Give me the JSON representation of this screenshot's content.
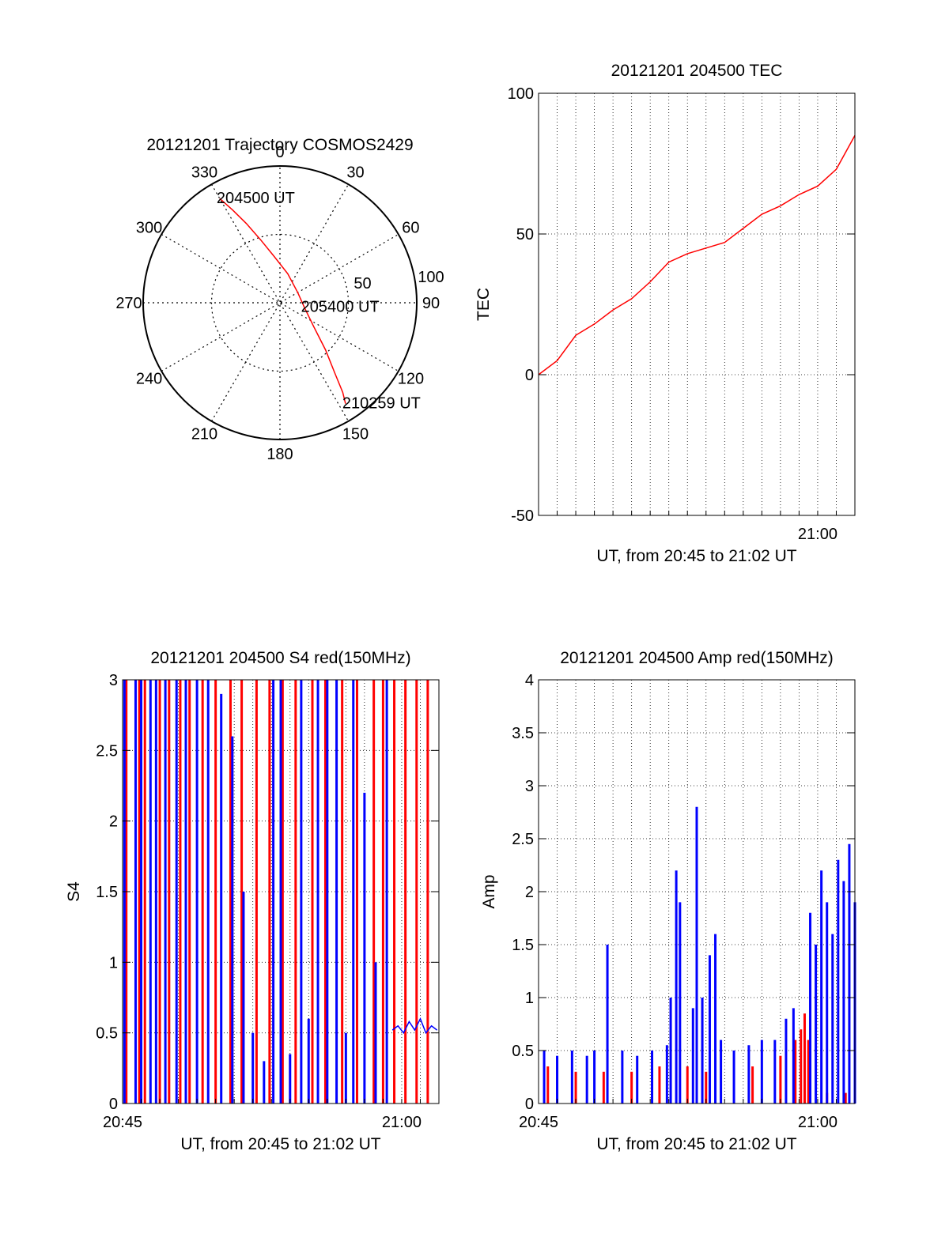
{
  "chart_data": [
    {
      "type": "polar",
      "title": "20121201 Trajectory COSMOS2429",
      "azimuth_labels": [
        "0",
        "30",
        "60",
        "90",
        "120",
        "150",
        "180",
        "210",
        "240",
        "270",
        "300",
        "330"
      ],
      "radial_labels": [
        "50",
        "100"
      ],
      "series": [
        {
          "color": "#ff0000",
          "points": [
            {
              "az": 330,
              "r": 88
            },
            {
              "az": 333,
              "r": 76
            },
            {
              "az": 337,
              "r": 63
            },
            {
              "az": 343,
              "r": 48
            },
            {
              "az": 353,
              "r": 34
            },
            {
              "az": 15,
              "r": 22
            },
            {
              "az": 60,
              "r": 15
            },
            {
              "az": 100,
              "r": 18
            },
            {
              "az": 125,
              "r": 30
            },
            {
              "az": 136,
              "r": 48
            },
            {
              "az": 142,
              "r": 65
            },
            {
              "az": 145,
              "r": 80
            },
            {
              "az": 147,
              "r": 88
            }
          ]
        }
      ],
      "annotations": [
        {
          "text": "204500 UT",
          "az": 330,
          "r": 88
        },
        {
          "text": "205400 UT",
          "az": 100,
          "r": 18
        },
        {
          "text": "210259 UT",
          "az": 147,
          "r": 88
        }
      ]
    },
    {
      "type": "line",
      "title": "20121201 204500 TEC",
      "xlabel": "UT, from 20:45 to 21:02 UT",
      "ylabel": "TEC",
      "xlim": [
        0,
        17
      ],
      "ylim": [
        -50,
        100
      ],
      "yticks": [
        "100",
        "50",
        "0",
        "-50"
      ],
      "xticks": [
        {
          "at": 15,
          "label": "21:00"
        }
      ],
      "grid": true,
      "series": [
        {
          "color": "#ff0000",
          "x": [
            0,
            1,
            2,
            3,
            4,
            5,
            6,
            7,
            8,
            9,
            10,
            11,
            12,
            13,
            14,
            15,
            16,
            17
          ],
          "y": [
            0,
            5,
            14,
            18,
            23,
            27,
            33,
            40,
            43,
            45,
            47,
            52,
            57,
            60,
            64,
            67,
            73,
            85
          ]
        }
      ]
    },
    {
      "type": "line",
      "title": "20121201 204500 S4 red(150MHz)",
      "xlabel": "UT, from 20:45 to 21:02 UT",
      "ylabel": "S4",
      "xlim": [
        0,
        17
      ],
      "ylim": [
        0,
        3
      ],
      "yticks": [
        "3",
        "2.5",
        "2",
        "1.5",
        "1",
        "0.5",
        "0"
      ],
      "xticks": [
        {
          "at": 0,
          "label": "20:45"
        },
        {
          "at": 15,
          "label": "21:00"
        }
      ],
      "grid": true,
      "series": [
        {
          "color": "#ff0000",
          "style": "spikes",
          "x": [
            0.2,
            0.9,
            1.2,
            2.0,
            2.5,
            3.1,
            3.6,
            4.3,
            5.0,
            5.8,
            6.4,
            7.2,
            7.9,
            8.6,
            9.3,
            10.2,
            10.9,
            11.8,
            12.6,
            13.5,
            14.0,
            14.6,
            15.2,
            15.8,
            16.4
          ],
          "y": [
            3,
            3,
            3,
            3,
            3,
            3,
            3,
            3,
            3,
            3,
            3,
            3,
            3,
            3,
            3,
            3,
            3,
            3,
            3,
            3,
            3,
            3,
            3,
            3,
            3
          ]
        },
        {
          "color": "#0000ff",
          "style": "spikes",
          "x": [
            0.1,
            0.7,
            1.0,
            1.5,
            1.8,
            2.3,
            2.9,
            3.4,
            4.0,
            4.6,
            5.3,
            5.9,
            6.5,
            7.0,
            7.6,
            8.1,
            8.5,
            9.0,
            9.6,
            10.0,
            10.5,
            11.0,
            11.5,
            12.0,
            12.4,
            13.0,
            13.6,
            14.2
          ],
          "y": [
            3,
            3,
            3,
            3,
            3,
            3,
            3,
            3,
            3,
            3,
            2.9,
            2.6,
            1.5,
            0.5,
            0.3,
            3,
            3,
            0.35,
            3,
            0.6,
            3,
            3,
            3,
            0.5,
            3,
            2.2,
            1.0,
            3
          ]
        },
        {
          "color": "#0000ff",
          "style": "line",
          "x": [
            14.5,
            14.8,
            15.1,
            15.4,
            15.7,
            16.0,
            16.3,
            16.6,
            16.9
          ],
          "y": [
            0.52,
            0.55,
            0.5,
            0.58,
            0.52,
            0.6,
            0.5,
            0.55,
            0.52
          ]
        }
      ]
    },
    {
      "type": "line",
      "title": "20121201 204500 Amp red(150MHz)",
      "xlabel": "UT, from 20:45 to 21:02 UT",
      "ylabel": "Amp",
      "xlim": [
        0,
        17
      ],
      "ylim": [
        0,
        4
      ],
      "yticks": [
        "4",
        "3.5",
        "3",
        "2.5",
        "2",
        "1.5",
        "1",
        "0.5",
        "0"
      ],
      "xticks": [
        {
          "at": 0,
          "label": "20:45"
        },
        {
          "at": 15,
          "label": "21:00"
        }
      ],
      "grid": true,
      "series": [
        {
          "color": "#ff0000",
          "style": "spikes",
          "x": [
            0.5,
            2.0,
            3.5,
            5.0,
            6.5,
            8.0,
            9.0,
            11.5,
            13.0,
            13.8,
            14.1,
            14.3,
            14.5,
            15.5,
            16.5
          ],
          "y": [
            0.35,
            0.3,
            0.3,
            0.3,
            0.35,
            0.35,
            0.3,
            0.35,
            0.45,
            0.6,
            0.7,
            0.85,
            0.6,
            0.1,
            0.1
          ]
        },
        {
          "color": "#0000ff",
          "style": "spikes",
          "x": [
            0.3,
            1.0,
            1.8,
            2.6,
            3.0,
            3.7,
            4.5,
            5.3,
            6.1,
            6.9,
            7.1,
            7.4,
            7.6,
            8.3,
            8.5,
            8.8,
            9.2,
            9.5,
            9.8,
            10.5,
            11.3,
            12.0,
            12.7,
            13.3,
            13.7,
            14.6,
            14.9,
            15.2,
            15.5,
            15.8,
            16.1,
            16.4,
            16.7,
            17.0
          ],
          "y": [
            0.5,
            0.45,
            0.5,
            0.45,
            0.5,
            1.5,
            0.5,
            0.45,
            0.5,
            0.55,
            1.0,
            2.2,
            1.9,
            0.9,
            2.8,
            1.0,
            1.4,
            1.6,
            0.6,
            0.5,
            0.55,
            0.6,
            0.6,
            0.8,
            0.9,
            1.8,
            1.5,
            2.2,
            1.9,
            1.6,
            2.3,
            2.1,
            2.45,
            1.9
          ]
        }
      ]
    }
  ]
}
